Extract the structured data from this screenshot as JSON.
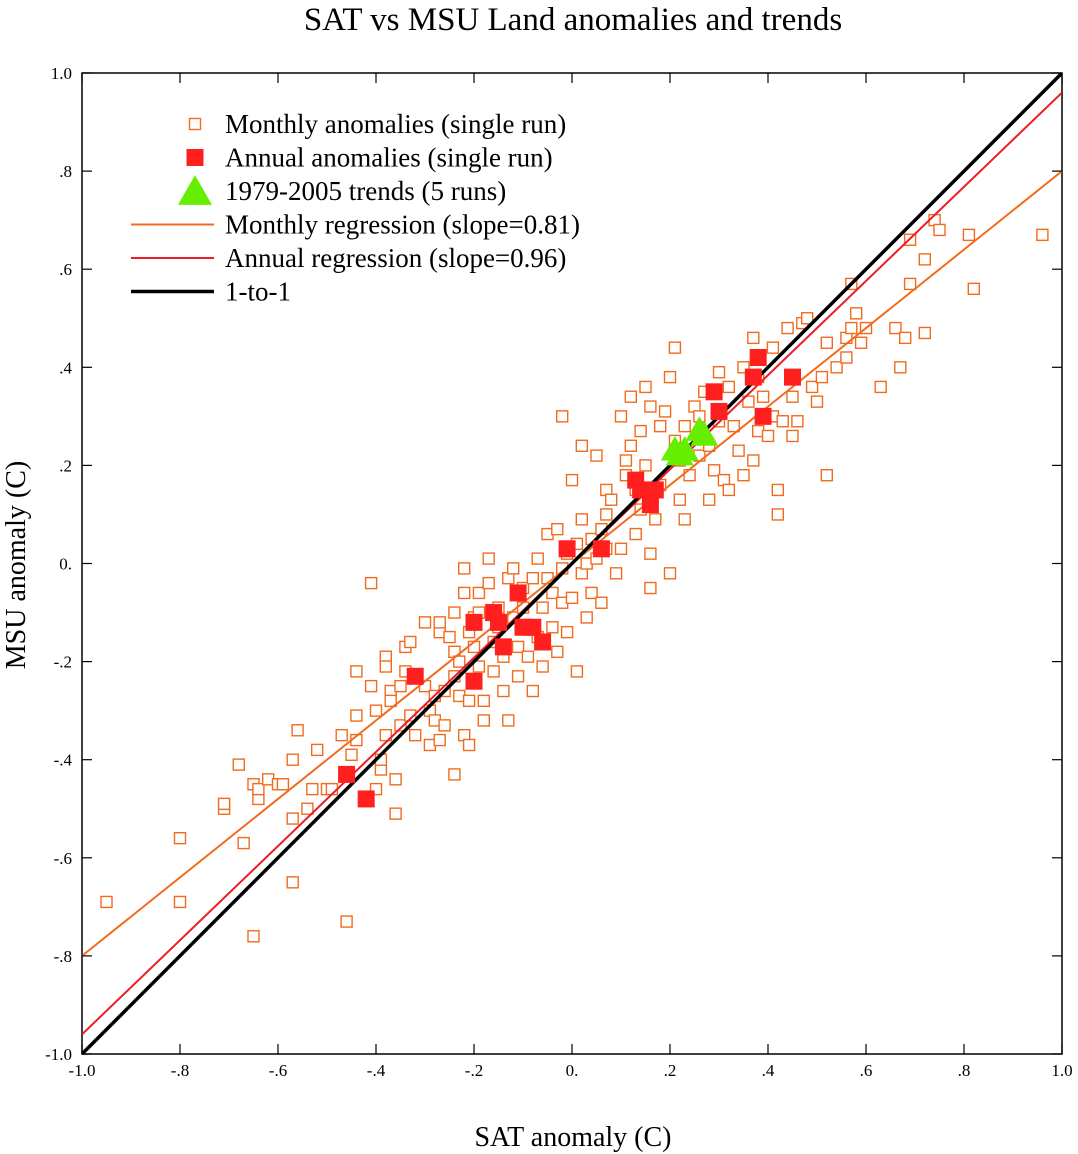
{
  "chart_data": {
    "type": "scatter",
    "title": "SAT vs MSU Land anomalies and trends",
    "xlabel": "SAT anomaly (C)",
    "ylabel": "MSU anomaly (C)",
    "xlim": [
      -1.0,
      1.0
    ],
    "ylim": [
      -1.0,
      1.0
    ],
    "x_tick_values": [
      -1.0,
      -0.8,
      -0.6,
      -0.4,
      -0.2,
      0.0,
      0.2,
      0.4,
      0.6,
      0.8,
      1.0
    ],
    "x_tick_labels": [
      "-1.0",
      "-.8",
      "-.6",
      "-.4",
      "-.2",
      "0.",
      ".2",
      ".4",
      ".6",
      ".8",
      "1.0"
    ],
    "y_tick_values": [
      -1.0,
      -0.8,
      -0.6,
      -0.4,
      -0.2,
      0.0,
      0.2,
      0.4,
      0.6,
      0.8,
      1.0
    ],
    "y_tick_labels": [
      "-1.0",
      "-.8",
      "-.6",
      "-.4",
      "-.2",
      "0.",
      ".2",
      ".4",
      ".6",
      ".8",
      "1.0"
    ],
    "grid": false,
    "legend_position": "top-left",
    "series": [
      {
        "name": "Monthly anomalies (single run)",
        "kind": "points",
        "marker": "open-square",
        "color": "#f26b1d",
        "points": [
          [
            -0.95,
            -0.69
          ],
          [
            -0.8,
            -0.56
          ],
          [
            -0.8,
            -0.69
          ],
          [
            -0.71,
            -0.5
          ],
          [
            -0.71,
            -0.49
          ],
          [
            -0.68,
            -0.41
          ],
          [
            -0.67,
            -0.57
          ],
          [
            -0.65,
            -0.45
          ],
          [
            -0.65,
            -0.76
          ],
          [
            -0.64,
            -0.48
          ],
          [
            -0.64,
            -0.46
          ],
          [
            -0.62,
            -0.44
          ],
          [
            -0.6,
            -0.45
          ],
          [
            -0.59,
            -0.45
          ],
          [
            -0.57,
            -0.4
          ],
          [
            -0.57,
            -0.52
          ],
          [
            -0.57,
            -0.65
          ],
          [
            -0.56,
            -0.34
          ],
          [
            -0.54,
            -0.5
          ],
          [
            -0.53,
            -0.46
          ],
          [
            -0.52,
            -0.38
          ],
          [
            -0.5,
            -0.46
          ],
          [
            -0.49,
            -0.46
          ],
          [
            -0.47,
            -0.35
          ],
          [
            -0.46,
            -0.73
          ],
          [
            -0.45,
            -0.39
          ],
          [
            -0.44,
            -0.36
          ],
          [
            -0.44,
            -0.31
          ],
          [
            -0.44,
            -0.22
          ],
          [
            -0.41,
            -0.04
          ],
          [
            -0.41,
            -0.25
          ],
          [
            -0.4,
            -0.46
          ],
          [
            -0.4,
            -0.3
          ],
          [
            -0.39,
            -0.42
          ],
          [
            -0.39,
            -0.4
          ],
          [
            -0.38,
            -0.19
          ],
          [
            -0.38,
            -0.21
          ],
          [
            -0.38,
            -0.35
          ],
          [
            -0.37,
            -0.26
          ],
          [
            -0.37,
            -0.28
          ],
          [
            -0.36,
            -0.51
          ],
          [
            -0.36,
            -0.44
          ],
          [
            -0.35,
            -0.33
          ],
          [
            -0.35,
            -0.25
          ],
          [
            -0.34,
            -0.22
          ],
          [
            -0.34,
            -0.17
          ],
          [
            -0.33,
            -0.16
          ],
          [
            -0.33,
            -0.31
          ],
          [
            -0.32,
            -0.35
          ],
          [
            -0.32,
            -0.23
          ],
          [
            -0.3,
            -0.12
          ],
          [
            -0.3,
            -0.25
          ],
          [
            -0.29,
            -0.3
          ],
          [
            -0.29,
            -0.37
          ],
          [
            -0.28,
            -0.27
          ],
          [
            -0.28,
            -0.32
          ],
          [
            -0.27,
            -0.14
          ],
          [
            -0.27,
            -0.12
          ],
          [
            -0.27,
            -0.36
          ],
          [
            -0.26,
            -0.33
          ],
          [
            -0.26,
            -0.26
          ],
          [
            -0.25,
            -0.15
          ],
          [
            -0.24,
            -0.43
          ],
          [
            -0.24,
            -0.23
          ],
          [
            -0.24,
            -0.18
          ],
          [
            -0.24,
            -0.1
          ],
          [
            -0.23,
            -0.2
          ],
          [
            -0.23,
            -0.27
          ],
          [
            -0.22,
            -0.06
          ],
          [
            -0.22,
            -0.01
          ],
          [
            -0.22,
            -0.35
          ],
          [
            -0.21,
            -0.14
          ],
          [
            -0.21,
            -0.28
          ],
          [
            -0.21,
            -0.37
          ],
          [
            -0.2,
            -0.11
          ],
          [
            -0.2,
            -0.17
          ],
          [
            -0.19,
            -0.1
          ],
          [
            -0.19,
            -0.06
          ],
          [
            -0.19,
            -0.21
          ],
          [
            -0.18,
            -0.28
          ],
          [
            -0.18,
            -0.32
          ],
          [
            -0.17,
            0.01
          ],
          [
            -0.17,
            -0.04
          ],
          [
            -0.16,
            -0.16
          ],
          [
            -0.16,
            -0.22
          ],
          [
            -0.15,
            -0.09
          ],
          [
            -0.15,
            -0.13
          ],
          [
            -0.14,
            -0.19
          ],
          [
            -0.14,
            -0.26
          ],
          [
            -0.13,
            -0.32
          ],
          [
            -0.13,
            -0.03
          ],
          [
            -0.12,
            -0.01
          ],
          [
            -0.12,
            -0.11
          ],
          [
            -0.11,
            -0.17
          ],
          [
            -0.11,
            -0.23
          ],
          [
            -0.1,
            -0.09
          ],
          [
            -0.1,
            -0.05
          ],
          [
            -0.09,
            -0.13
          ],
          [
            -0.09,
            -0.19
          ],
          [
            -0.08,
            -0.26
          ],
          [
            -0.08,
            -0.03
          ],
          [
            -0.07,
            0.01
          ],
          [
            -0.07,
            -0.15
          ],
          [
            -0.06,
            -0.09
          ],
          [
            -0.06,
            -0.21
          ],
          [
            -0.05,
            0.06
          ],
          [
            -0.05,
            -0.03
          ],
          [
            -0.04,
            -0.13
          ],
          [
            -0.04,
            -0.06
          ],
          [
            -0.03,
            0.07
          ],
          [
            -0.03,
            -0.18
          ],
          [
            -0.02,
            -0.01
          ],
          [
            -0.02,
            -0.08
          ],
          [
            -0.02,
            0.3
          ],
          [
            -0.01,
            0.02
          ],
          [
            -0.01,
            -0.14
          ],
          [
            0.0,
            0.17
          ],
          [
            0.0,
            -0.07
          ],
          [
            0.01,
            0.04
          ],
          [
            0.01,
            -0.22
          ],
          [
            0.02,
            0.09
          ],
          [
            0.02,
            -0.02
          ],
          [
            0.02,
            0.24
          ],
          [
            0.03,
            0.0
          ],
          [
            0.03,
            -0.11
          ],
          [
            0.04,
            0.05
          ],
          [
            0.04,
            -0.06
          ],
          [
            0.05,
            0.01
          ],
          [
            0.05,
            0.22
          ],
          [
            0.06,
            0.07
          ],
          [
            0.06,
            -0.08
          ],
          [
            0.07,
            0.15
          ],
          [
            0.07,
            0.1
          ],
          [
            0.07,
            0.03
          ],
          [
            0.08,
            0.13
          ],
          [
            0.09,
            -0.02
          ],
          [
            0.1,
            0.03
          ],
          [
            0.1,
            0.3
          ],
          [
            0.11,
            0.18
          ],
          [
            0.11,
            0.21
          ],
          [
            0.12,
            0.24
          ],
          [
            0.12,
            0.34
          ],
          [
            0.13,
            0.06
          ],
          [
            0.13,
            0.15
          ],
          [
            0.14,
            0.27
          ],
          [
            0.14,
            0.11
          ],
          [
            0.15,
            0.36
          ],
          [
            0.15,
            0.2
          ],
          [
            0.16,
            0.32
          ],
          [
            0.16,
            0.02
          ],
          [
            0.16,
            -0.05
          ],
          [
            0.17,
            0.09
          ],
          [
            0.18,
            0.28
          ],
          [
            0.18,
            0.16
          ],
          [
            0.19,
            0.31
          ],
          [
            0.2,
            -0.02
          ],
          [
            0.2,
            0.38
          ],
          [
            0.21,
            0.25
          ],
          [
            0.21,
            0.44
          ],
          [
            0.22,
            0.21
          ],
          [
            0.22,
            0.13
          ],
          [
            0.23,
            0.28
          ],
          [
            0.23,
            0.09
          ],
          [
            0.24,
            0.18
          ],
          [
            0.25,
            0.32
          ],
          [
            0.26,
            0.22
          ],
          [
            0.26,
            0.3
          ],
          [
            0.27,
            0.35
          ],
          [
            0.28,
            0.13
          ],
          [
            0.28,
            0.24
          ],
          [
            0.29,
            0.19
          ],
          [
            0.3,
            0.39
          ],
          [
            0.3,
            0.29
          ],
          [
            0.31,
            0.17
          ],
          [
            0.32,
            0.36
          ],
          [
            0.32,
            0.15
          ],
          [
            0.33,
            0.28
          ],
          [
            0.34,
            0.23
          ],
          [
            0.35,
            0.4
          ],
          [
            0.35,
            0.18
          ],
          [
            0.36,
            0.33
          ],
          [
            0.37,
            0.46
          ],
          [
            0.37,
            0.21
          ],
          [
            0.38,
            0.38
          ],
          [
            0.38,
            0.27
          ],
          [
            0.39,
            0.34
          ],
          [
            0.4,
            0.26
          ],
          [
            0.41,
            0.44
          ],
          [
            0.41,
            0.3
          ],
          [
            0.42,
            0.15
          ],
          [
            0.42,
            0.1
          ],
          [
            0.43,
            0.29
          ],
          [
            0.44,
            0.48
          ],
          [
            0.45,
            0.34
          ],
          [
            0.45,
            0.26
          ],
          [
            0.46,
            0.29
          ],
          [
            0.47,
            0.49
          ],
          [
            0.48,
            0.5
          ],
          [
            0.49,
            0.36
          ],
          [
            0.5,
            0.33
          ],
          [
            0.51,
            0.38
          ],
          [
            0.52,
            0.18
          ],
          [
            0.52,
            0.45
          ],
          [
            0.54,
            0.4
          ],
          [
            0.56,
            0.42
          ],
          [
            0.56,
            0.46
          ],
          [
            0.57,
            0.57
          ],
          [
            0.57,
            0.48
          ],
          [
            0.58,
            0.51
          ],
          [
            0.59,
            0.45
          ],
          [
            0.6,
            0.48
          ],
          [
            0.63,
            0.36
          ],
          [
            0.66,
            0.48
          ],
          [
            0.67,
            0.4
          ],
          [
            0.68,
            0.46
          ],
          [
            0.69,
            0.57
          ],
          [
            0.69,
            0.66
          ],
          [
            0.72,
            0.47
          ],
          [
            0.72,
            0.62
          ],
          [
            0.74,
            0.7
          ],
          [
            0.75,
            0.68
          ],
          [
            0.81,
            0.67
          ],
          [
            0.82,
            0.56
          ],
          [
            0.96,
            0.67
          ]
        ]
      },
      {
        "name": "Annual anomalies (single run)",
        "kind": "points",
        "marker": "filled-square",
        "color": "#ff1f1f",
        "points": [
          [
            -0.46,
            -0.43
          ],
          [
            -0.42,
            -0.48
          ],
          [
            -0.32,
            -0.23
          ],
          [
            -0.2,
            -0.12
          ],
          [
            -0.2,
            -0.24
          ],
          [
            -0.16,
            -0.1
          ],
          [
            -0.15,
            -0.12
          ],
          [
            -0.14,
            -0.17
          ],
          [
            -0.11,
            -0.06
          ],
          [
            -0.1,
            -0.13
          ],
          [
            -0.08,
            -0.13
          ],
          [
            -0.06,
            -0.16
          ],
          [
            -0.01,
            0.03
          ],
          [
            0.06,
            0.03
          ],
          [
            0.13,
            0.17
          ],
          [
            0.14,
            0.15
          ],
          [
            0.16,
            0.12
          ],
          [
            0.17,
            0.15
          ],
          [
            0.29,
            0.35
          ],
          [
            0.3,
            0.31
          ],
          [
            0.37,
            0.38
          ],
          [
            0.38,
            0.42
          ],
          [
            0.39,
            0.3
          ],
          [
            0.45,
            0.38
          ]
        ]
      },
      {
        "name": "1979-2005 trends (5 runs)",
        "kind": "points",
        "marker": "filled-triangle",
        "color": "#66ee00",
        "points": [
          [
            0.21,
            0.23
          ],
          [
            0.23,
            0.23
          ],
          [
            0.26,
            0.27
          ],
          [
            0.27,
            0.26
          ],
          [
            0.22,
            0.22
          ]
        ]
      },
      {
        "name": "Monthly regression (slope=0.81)",
        "kind": "line",
        "color": "#f26b1d",
        "x": [
          -1.0,
          1.0
        ],
        "y": [
          -0.8,
          0.8
        ]
      },
      {
        "name": "Annual regression (slope=0.96)",
        "kind": "line",
        "color": "#ee1c24",
        "x": [
          -1.0,
          1.0
        ],
        "y": [
          -0.96,
          0.96
        ]
      },
      {
        "name": "1-to-1",
        "kind": "line",
        "color": "#000000",
        "x": [
          -1.0,
          1.0
        ],
        "y": [
          -1.0,
          1.0
        ]
      }
    ]
  }
}
